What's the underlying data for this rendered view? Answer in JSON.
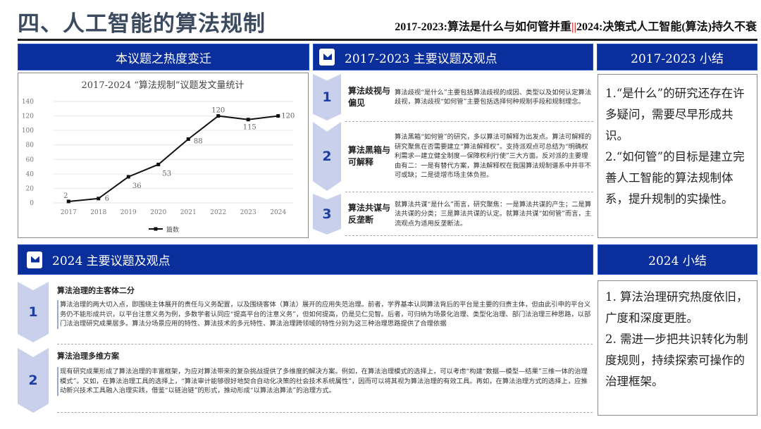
{
  "header": {
    "title": "四、人工智能的算法规制",
    "subtitle_a": "2017-2023:算法是什么与如何管并重",
    "separator": "||",
    "subtitle_b": "2024:决策式人工智能(算法)持久不衰"
  },
  "panels": {
    "heat": "本议题之热度变迁",
    "topics_2017": "2017-2023  主要议题及观点",
    "summary_2017": "2017-2023  小结",
    "topics_2024": "2024  主要议题及观点",
    "summary_2024": "2024  小结"
  },
  "chart_data": {
    "type": "line",
    "title": "2017-2024 “算法规制”议题发文量统计",
    "categories": [
      "2017",
      "2018",
      "2019",
      "2020",
      "2021",
      "2022",
      "2023",
      "2024"
    ],
    "series": [
      {
        "name": "篇数",
        "values": [
          2,
          6,
          36,
          53,
          88,
          120,
          115,
          120
        ]
      }
    ],
    "ylim": [
      0,
      140
    ],
    "yticks": [
      "0",
      "20",
      "40",
      "60",
      "80",
      "100",
      "120",
      "140"
    ],
    "grid": true,
    "legend": "bottom",
    "color": "#111111"
  },
  "topics2017": [
    {
      "n": "1",
      "label": "算法歧视与偏见",
      "text": "算法歧视“是什么”主要包括算法歧视的成因、类型以及如何认定算法歧视，算法歧视“如何管”主要包括选择何种规制手段和规制理念。"
    },
    {
      "n": "2",
      "label": "算法黑箱与可解释",
      "text": "算法黑箱“如何管”的研究，多以算法可解释为出发点。算法可解释的研究聚焦在否需要建立“算法解释权”。支持派观点可总结为“明确权利需求—建立健全制度—保障权利行使”三大方面。反对派的主要理由有二：一是有替代方案，算法解释权在我国算法规制谱系中并非不可或缺；二是徒增市场主体负担。"
    },
    {
      "n": "3",
      "label": "算法共谋与反垄断",
      "text": "就算法共谋“是什么”而言，研究聚焦：一是算法共谋的产生；二是算法共谋的分类；三是算法共谋的认定。就算法共谋“如何管”而言，主流观点为适用反垄断法。"
    }
  ],
  "summary2017": [
    "1.“是什么”的研究还存在许多疑问，需要尽早形成共识。",
    "2.“如何管”的目标是建立完善人工智能的算法规制体系，提升规制的实操性。"
  ],
  "topics2024": [
    {
      "n": "1",
      "title": "算法治理的主客体二分",
      "text": "算法治理的两大切入点，即围绕主体展开的责任与义务配置，以及围绕客体（算法）展开的应用失范治理。前者，学界基本认同算法背后的平台是主要的归责主体，但由此引申的平台义务仍不能形成共识，以平台注意义务为例，多数学者认同应“提高平台的注意义务”，但如何提高，仍是见仁见智。后者，可归纳为场景化治理、类型化治理、部门法治理三种思路，以部门法治理研究成果居多。算法分场景应用的特性、算法技术的多元特性、算法治理跨领域的特性分别为这三种治理思路提供了合理依据"
    },
    {
      "n": "2",
      "title": "算法治理多维方案",
      "text": "现有研究成果形成了算法治理的丰富框架，为应对算法带来的复杂挑战提供了多维度的解决方案。例如，在算法治理模式的选择上，可以考虑“构建“数据—模型—结果”三维一体的治理模式”。又如，在算法治理工具的选择上，“算法审计能够很好地契合自动化决策的社会技术系统属性”，因而可以将其视为算法治理的有效工具。再如，在算法治理方式的选择上，应推动新兴技术工具融入治理实践，借鉴“以链治链”的形式，推动形成“以算法治算法”的治理方式。"
    }
  ],
  "summary2024": [
    "1. 算法治理研究热度依旧，广度和深度更胜。",
    "2. 需进一步把共识转化为制度规则，持续探索可操作的治理框架。"
  ]
}
